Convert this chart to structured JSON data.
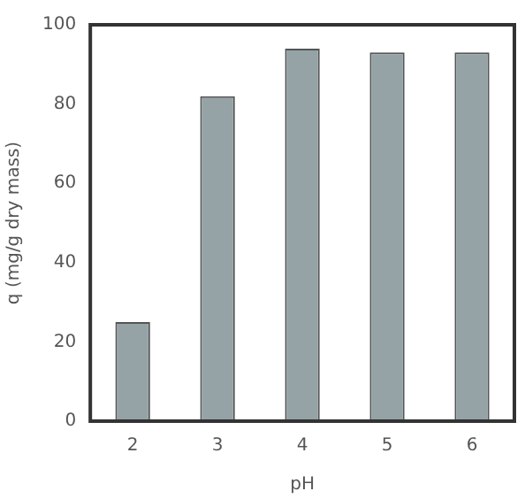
{
  "chart_data": {
    "type": "bar",
    "xlabel": "pH",
    "ylabel": "q (mg/g dry mass)",
    "categories": [
      "2",
      "3",
      "4",
      "5",
      "6"
    ],
    "values": [
      25,
      82,
      94,
      93,
      93
    ],
    "color": "#95a3a6",
    "ylim": [
      0,
      100
    ],
    "yticks": [
      0,
      20,
      40,
      60,
      80,
      100
    ],
    "grid": false,
    "legend": false
  }
}
